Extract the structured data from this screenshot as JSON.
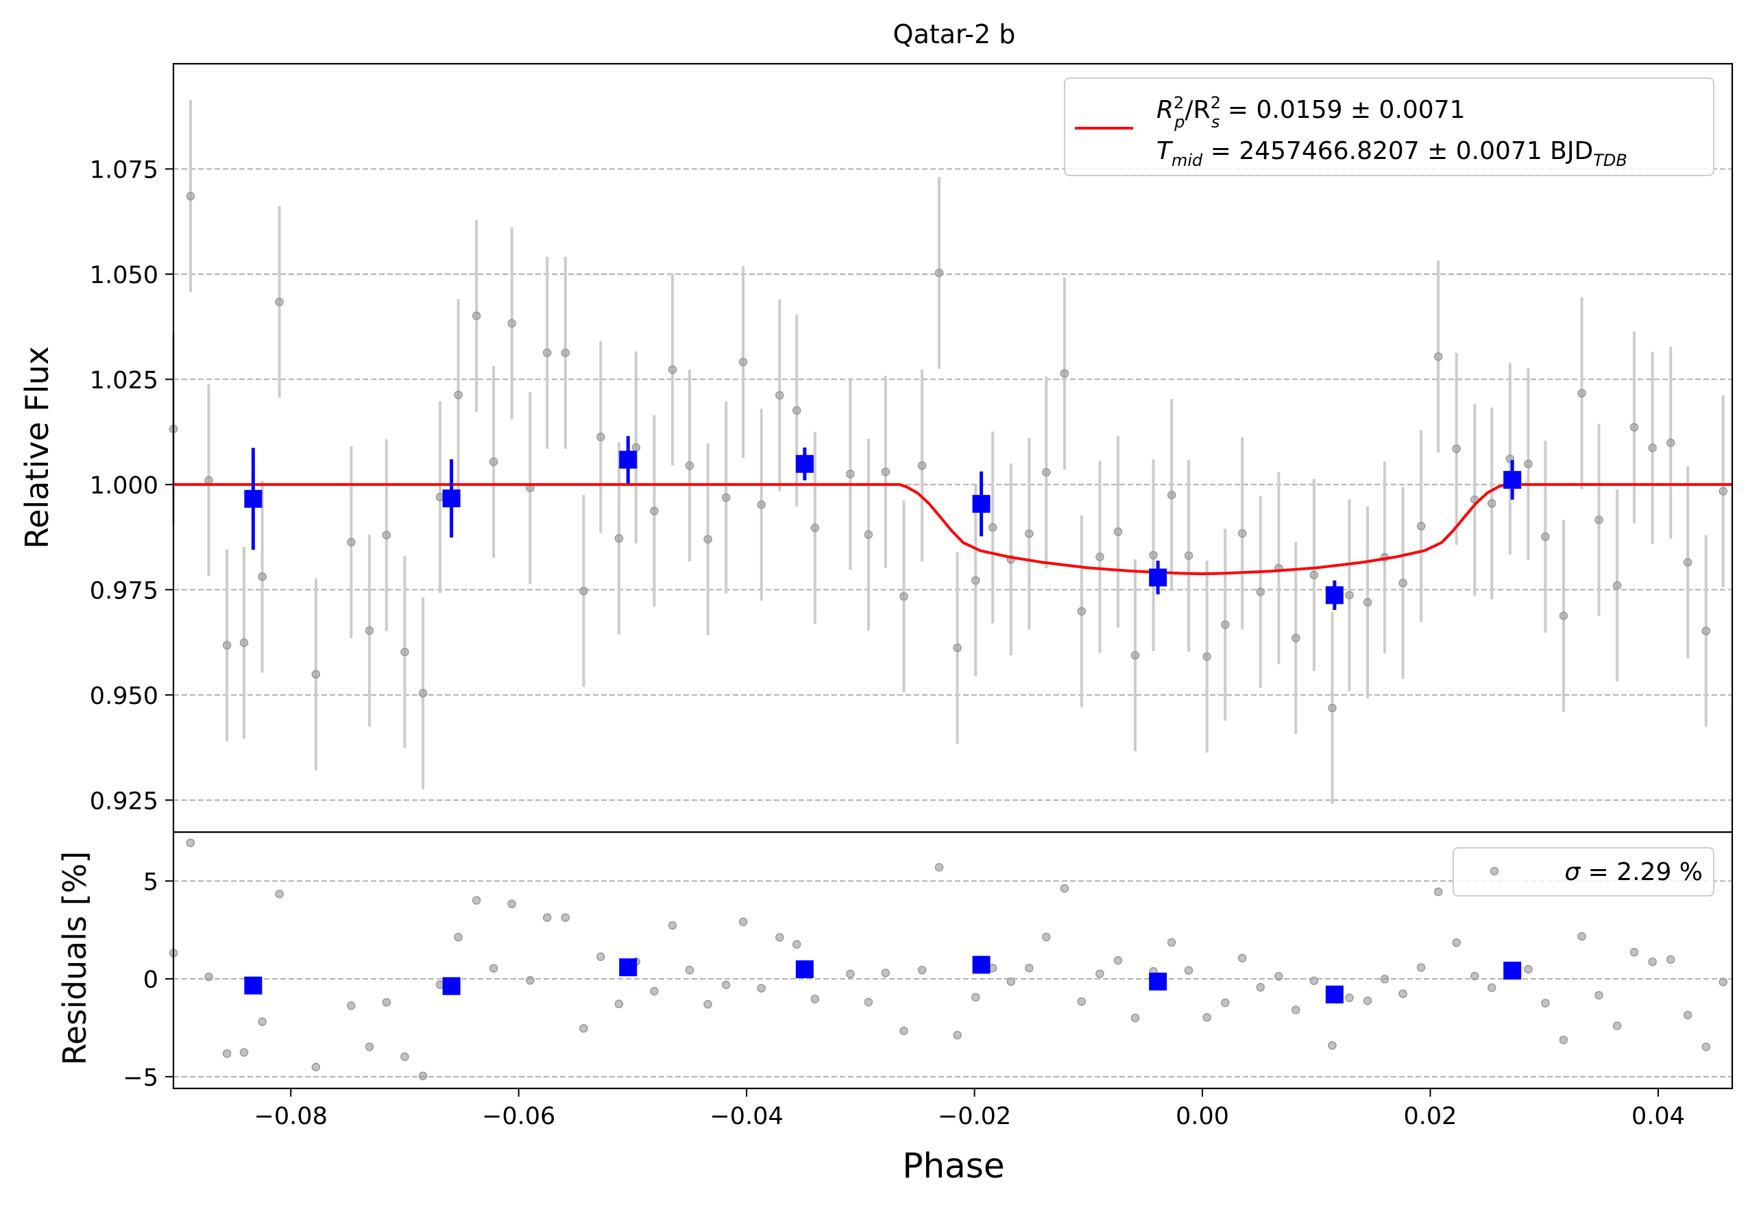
{
  "chart_data": {
    "type": "scatter",
    "title": "Qatar-2 b",
    "xlabel": "Phase",
    "xlim": [
      -0.0903,
      0.0465
    ],
    "x_ticks": [
      -0.08,
      -0.06,
      -0.04,
      -0.02,
      0.0,
      0.02,
      0.04
    ],
    "x_tick_labels": [
      "−0.08",
      "−0.06",
      "−0.04",
      "−0.02",
      "0.00",
      "0.02",
      "0.04"
    ],
    "grid": "horizontal dashed",
    "colors": {
      "raw": "#999999",
      "errorbar": "#cccccc",
      "binned": "#0000ff",
      "model": "#ff0000"
    },
    "panels": [
      {
        "name": "flux",
        "ylabel": "Relative Flux",
        "ylim": [
          0.9174,
          1.1
        ],
        "y_ticks": [
          0.925,
          0.95,
          0.975,
          1.0,
          1.025,
          1.05,
          1.075
        ],
        "y_tick_labels": [
          "0.925",
          "0.950",
          "0.975",
          "1.000",
          "1.025",
          "1.050",
          "1.075"
        ],
        "legend": {
          "position": "top-right",
          "line1": {
            "a": "R",
            "a_sup": "2",
            "a_sub": "p",
            "b": "/R",
            "b_sup": "2",
            "b_sub": "s",
            "rest": " = 0.0159 ± 0.0071"
          },
          "line2": {
            "a": "T",
            "a_sub": "mid",
            "rest": " = 2457466.8207 ± 0.0071 BJD",
            "rest_sub": "TDB"
          }
        },
        "raw": {
          "x": [
            -0.0903,
            -0.0888,
            -0.0872,
            -0.0856,
            -0.0841,
            -0.0825,
            -0.081,
            -0.0778,
            -0.0747,
            -0.0731,
            -0.0716,
            -0.07,
            -0.0684,
            -0.0669,
            -0.0653,
            -0.0637,
            -0.0622,
            -0.0606,
            -0.059,
            -0.0575,
            -0.0559,
            -0.0543,
            -0.0528,
            -0.0512,
            -0.0497,
            -0.0481,
            -0.0465,
            -0.045,
            -0.0434,
            -0.0418,
            -0.0403,
            -0.0387,
            -0.0371,
            -0.0356,
            -0.034,
            -0.0309,
            -0.0293,
            -0.0278,
            -0.0262,
            -0.0246,
            -0.0231,
            -0.0215,
            -0.0199,
            -0.0184,
            -0.0168,
            -0.0152,
            -0.0137,
            -0.0121,
            -0.0106,
            -0.009,
            -0.0074,
            -0.0059,
            -0.0043,
            -0.0027,
            -0.0012,
            0.0004,
            0.002,
            0.0035,
            0.0051,
            0.0067,
            0.0082,
            0.0098,
            0.0114,
            0.0129,
            0.0145,
            0.016,
            0.0176,
            0.0192,
            0.0207,
            0.0223,
            0.0239,
            0.0254,
            0.027,
            0.0286,
            0.0301,
            0.0317,
            0.0333,
            0.0348,
            0.0364,
            0.0379,
            0.0395,
            0.0411,
            0.0426,
            0.0442,
            0.0457
          ],
          "y": [
            1.0132,
            1.0685,
            1.001,
            0.9618,
            0.9624,
            0.9781,
            1.0434,
            0.9549,
            0.9863,
            0.9653,
            0.988,
            0.9602,
            0.9504,
            0.997,
            1.0213,
            1.0401,
            1.0054,
            1.0383,
            0.9992,
            1.0313,
            1.0313,
            0.9747,
            1.0113,
            0.9872,
            1.0088,
            0.9937,
            1.0273,
            1.0045,
            0.987,
            0.9969,
            1.0291,
            0.9952,
            1.0212,
            1.0176,
            0.9897,
            1.0025,
            0.9881,
            1.003,
            0.9734,
            1.0045,
            1.0503,
            0.9612,
            0.9772,
            0.9898,
            0.9822,
            0.9883,
            1.0029,
            1.0264,
            0.9699,
            0.9828,
            0.9888,
            0.9594,
            0.9832,
            0.9975,
            0.9831,
            0.9591,
            0.9667,
            0.9884,
            0.9745,
            0.9801,
            0.9635,
            0.9785,
            0.9469,
            0.9737,
            0.972,
            0.9827,
            0.9766,
            0.9901,
            1.0304,
            1.0085,
            0.9964,
            0.9955,
            1.0061,
            1.0049,
            0.9876,
            0.9688,
            1.0217,
            0.9916,
            0.976,
            1.0136,
            1.0087,
            1.0099,
            0.9815,
            0.9652,
            0.9984
          ],
          "yerr": 0.0228
        },
        "binned": {
          "x": [
            -0.0833,
            -0.0659,
            -0.0504,
            -0.0349,
            -0.0194,
            -0.0039,
            0.0116,
            0.0272
          ],
          "y": [
            0.9966,
            0.9967,
            1.0059,
            1.0049,
            0.9954,
            0.9779,
            0.9737,
            1.0011
          ],
          "yerr": [
            0.0121,
            0.0093,
            0.0056,
            0.0039,
            0.0077,
            0.004,
            0.0035,
            0.0047
          ]
        },
        "model": {
          "x": [
            -0.0903,
            -0.0266,
            -0.026,
            -0.025,
            -0.024,
            -0.023,
            -0.022,
            -0.021,
            -0.0195,
            -0.017,
            -0.014,
            -0.01,
            -0.006,
            -0.002,
            0.0,
            0.002,
            0.006,
            0.01,
            0.014,
            0.017,
            0.0195,
            0.021,
            0.022,
            0.023,
            0.024,
            0.025,
            0.026,
            0.0266,
            0.0465
          ],
          "y": [
            1.0,
            1.0,
            0.9995,
            0.998,
            0.9955,
            0.9923,
            0.989,
            0.9862,
            0.9843,
            0.9828,
            0.9815,
            0.9802,
            0.9794,
            0.9789,
            0.9788,
            0.9789,
            0.9794,
            0.9802,
            0.9815,
            0.9828,
            0.9843,
            0.9862,
            0.989,
            0.9923,
            0.9955,
            0.998,
            0.9995,
            1.0,
            1.0
          ]
        }
      },
      {
        "name": "residuals",
        "ylabel": "Residuals [%]",
        "ylim": [
          -5.6,
          7.5
        ],
        "y_ticks": [
          -5,
          0,
          5
        ],
        "y_tick_labels": [
          "−5",
          "0",
          "5"
        ],
        "legend": {
          "position": "top-right",
          "symbol": "σ",
          "text": " = 2.29 %"
        },
        "raw": {
          "x": [
            -0.0903,
            -0.0888,
            -0.0872,
            -0.0856,
            -0.0841,
            -0.0825,
            -0.081,
            -0.0778,
            -0.0747,
            -0.0731,
            -0.0716,
            -0.07,
            -0.0684,
            -0.0669,
            -0.0653,
            -0.0637,
            -0.0622,
            -0.0606,
            -0.059,
            -0.0575,
            -0.0559,
            -0.0543,
            -0.0528,
            -0.0512,
            -0.0497,
            -0.0481,
            -0.0465,
            -0.045,
            -0.0434,
            -0.0418,
            -0.0403,
            -0.0387,
            -0.0371,
            -0.0356,
            -0.034,
            -0.0309,
            -0.0293,
            -0.0278,
            -0.0262,
            -0.0246,
            -0.0231,
            -0.0215,
            -0.0199,
            -0.0184,
            -0.0168,
            -0.0152,
            -0.0137,
            -0.0121,
            -0.0106,
            -0.009,
            -0.0074,
            -0.0059,
            -0.0043,
            -0.0027,
            -0.0012,
            0.0004,
            0.002,
            0.0035,
            0.0051,
            0.0067,
            0.0082,
            0.0098,
            0.0114,
            0.0129,
            0.0145,
            0.016,
            0.0176,
            0.0192,
            0.0207,
            0.0223,
            0.0239,
            0.0254,
            0.027,
            0.0286,
            0.0301,
            0.0317,
            0.0333,
            0.0348,
            0.0364,
            0.0379,
            0.0395,
            0.0411,
            0.0426,
            0.0442,
            0.0457
          ],
          "y": [
            1.32,
            6.95,
            0.1,
            -3.82,
            -3.76,
            -2.19,
            4.34,
            -4.51,
            -1.37,
            -3.47,
            -1.2,
            -3.98,
            -4.96,
            -0.3,
            2.13,
            4.01,
            0.54,
            3.83,
            -0.08,
            3.13,
            3.13,
            -2.53,
            1.13,
            -1.28,
            0.88,
            -0.63,
            2.73,
            0.45,
            -1.3,
            -0.31,
            2.91,
            -0.48,
            2.12,
            1.76,
            -1.03,
            0.25,
            -1.19,
            0.3,
            -2.66,
            0.45,
            5.7,
            -2.88,
            -0.94,
            0.55,
            -0.14,
            0.55,
            2.14,
            4.62,
            -1.16,
            0.26,
            0.94,
            -2.0,
            0.38,
            1.86,
            0.43,
            -1.97,
            -1.22,
            1.06,
            -0.43,
            0.13,
            -1.59,
            -0.1,
            -3.4,
            -0.97,
            -1.12,
            -0.01,
            -0.76,
            0.58,
            4.45,
            1.85,
            0.14,
            -0.45,
            0.61,
            0.49,
            -1.24,
            -3.12,
            2.17,
            -0.84,
            -2.4,
            1.36,
            0.87,
            0.99,
            -1.85,
            -3.48,
            -0.16
          ]
        },
        "binned": {
          "x": [
            -0.0833,
            -0.0659,
            -0.0504,
            -0.0349,
            -0.0194,
            -0.0039,
            0.0116,
            0.0272
          ],
          "y": [
            -0.34,
            -0.37,
            0.59,
            0.49,
            0.72,
            -0.14,
            -0.8,
            0.42
          ]
        }
      }
    ]
  }
}
